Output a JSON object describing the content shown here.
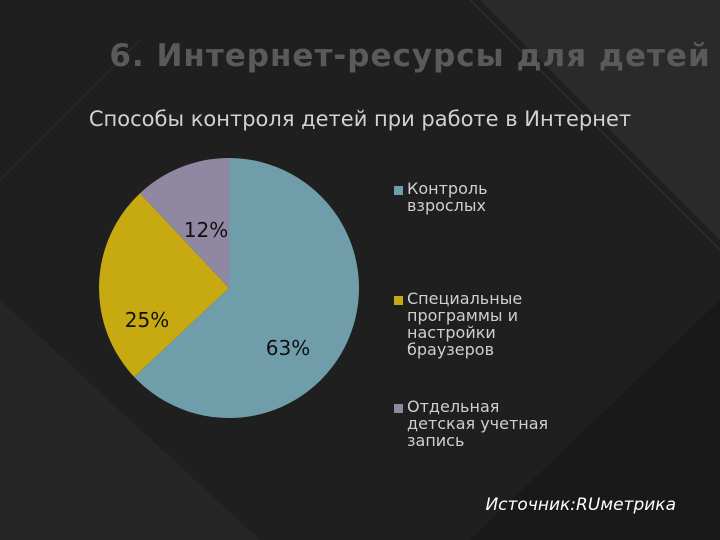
{
  "title": "6. Интернет-ресурсы для детей",
  "subtitle": "Способы контроля детей при работе в Интернет",
  "colors": {
    "background": "#1f1f1f",
    "title": "#5a5a5a",
    "subtitle": "#d2d2d2"
  },
  "chart_data": {
    "type": "pie",
    "title": "Способы контроля детей при работе в Интернет",
    "legend_position": "right",
    "slices": [
      {
        "label": "Контроль взрослых",
        "value": 63,
        "display": "63%",
        "color": "#6f9daa"
      },
      {
        "label": "Специальные программы и настройки браузеров",
        "value": 25,
        "display": "25%",
        "color": "#c7aa12"
      },
      {
        "label": "Отдельная детская учетная запись",
        "value": 12,
        "display": "12%",
        "color": "#9088a2"
      }
    ]
  },
  "source": "Источник:RUметрика"
}
